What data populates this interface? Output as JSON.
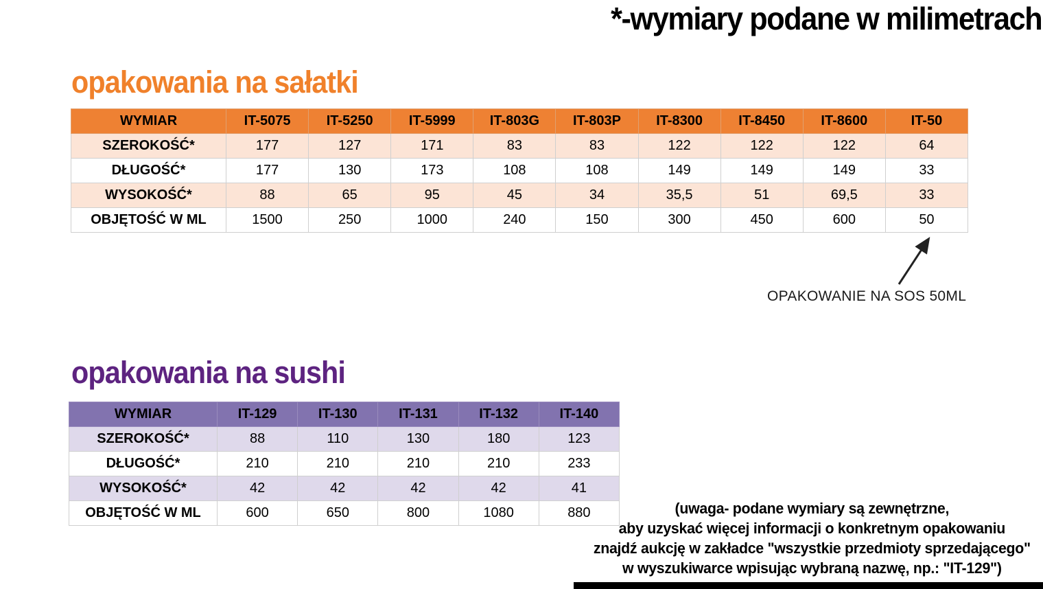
{
  "page": {
    "title": "*-wymiary podane w milimetrach"
  },
  "salad": {
    "heading": "opakowania na sałatki",
    "table": {
      "columns": [
        "WYMIAR",
        "IT-5075",
        "IT-5250",
        "IT-5999",
        "IT-803G",
        "IT-803P",
        "IT-8300",
        "IT-8450",
        "IT-8600",
        "IT-50"
      ],
      "rows": [
        {
          "label": "SZEROKOŚĆ*",
          "values": [
            "177",
            "127",
            "171",
            "83",
            "83",
            "122",
            "122",
            "122",
            "64"
          ]
        },
        {
          "label": "DŁUGOŚĆ*",
          "values": [
            "177",
            "130",
            "173",
            "108",
            "108",
            "149",
            "149",
            "149",
            "33"
          ]
        },
        {
          "label": "WYSOKOŚĆ*",
          "values": [
            "88",
            "65",
            "95",
            "45",
            "34",
            "35,5",
            "51",
            "69,5",
            "33"
          ]
        },
        {
          "label": "OBJĘTOŚĆ W ML",
          "values": [
            "1500",
            "250",
            "1000",
            "240",
            "150",
            "300",
            "450",
            "600",
            "50"
          ]
        }
      ]
    },
    "annotation": "OPAKOWANIE NA SOS 50ML"
  },
  "sushi": {
    "heading": "opakowania na sushi",
    "table": {
      "columns": [
        "WYMIAR",
        "IT-129",
        "IT-130",
        "IT-131",
        "IT-132",
        "IT-140"
      ],
      "rows": [
        {
          "label": "SZEROKOŚĆ*",
          "values": [
            "88",
            "110",
            "130",
            "180",
            "123"
          ]
        },
        {
          "label": "DŁUGOŚĆ*",
          "values": [
            "210",
            "210",
            "210",
            "210",
            "233"
          ]
        },
        {
          "label": "WYSOKOŚĆ*",
          "values": [
            "42",
            "42",
            "42",
            "42",
            "41"
          ]
        },
        {
          "label": "OBJĘTOŚĆ W ML",
          "values": [
            "600",
            "650",
            "800",
            "1080",
            "880"
          ]
        }
      ]
    }
  },
  "note": {
    "lines": [
      "(uwaga- podane wymiary są zewnętrzne,",
      "aby uzyskać więcej informacji o konkretnym opakowaniu",
      "znajdź aukcję w zakładce  \"wszystkie przedmioty sprzedającego\"",
      "w wyszukiwarce wpisując wybraną nazwę, np.: \"IT-129\")"
    ]
  },
  "colors": {
    "salad_header": "#EE8133",
    "salad_row_light": "#FCE4D6",
    "salad_heading": "#F0812B",
    "sushi_header": "#8273AF",
    "sushi_row_light": "#DFD9EB",
    "sushi_heading": "#5D2380",
    "text": "#000000"
  }
}
